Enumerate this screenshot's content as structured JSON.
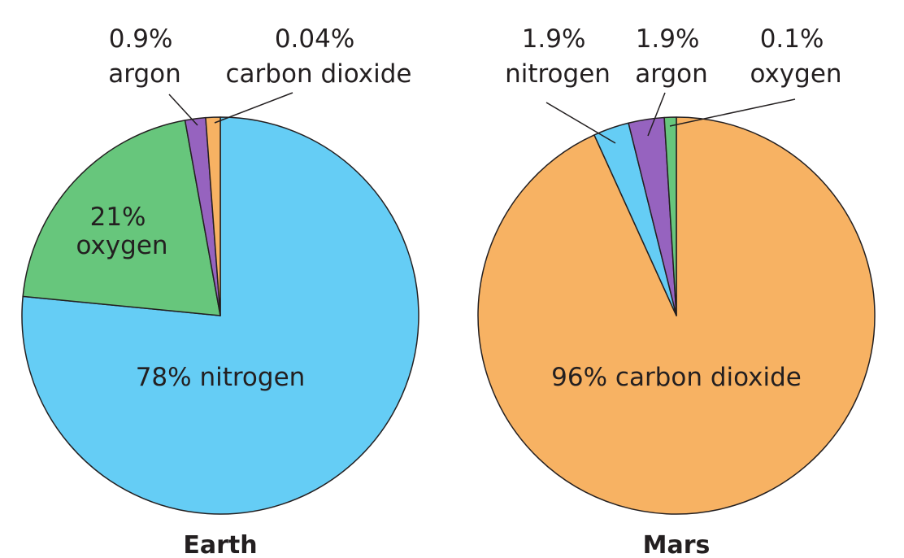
{
  "chart_data": [
    {
      "type": "pie",
      "title": "Earth",
      "start_angle_deg": 0,
      "direction": "clockwise",
      "slices": [
        {
          "label": "nitrogen",
          "value": 78,
          "display": "78% nitrogen",
          "color": "#65cdf5"
        },
        {
          "label": "oxygen",
          "value": 21,
          "display_lines": [
            "21%",
            "oxygen"
          ],
          "color": "#67c67c"
        },
        {
          "label": "argon",
          "value": 0.9,
          "display_lines": [
            "0.9%",
            "argon"
          ],
          "color": "#9663bf",
          "drawn_value": 1.7
        },
        {
          "label": "carbon dioxide",
          "value": 0.04,
          "display_lines": [
            "0.04%",
            "carbon dioxide"
          ],
          "color": "#f7b263",
          "drawn_value": 1.2
        }
      ]
    },
    {
      "type": "pie",
      "title": "Mars",
      "start_angle_deg": 0,
      "direction": "clockwise",
      "slices": [
        {
          "label": "carbon dioxide",
          "value": 96,
          "display": "96% carbon dioxide",
          "color": "#f7b263"
        },
        {
          "label": "nitrogen",
          "value": 1.9,
          "display_lines": [
            "1.9%",
            "nitrogen"
          ],
          "color": "#65cdf5",
          "drawn_value": 3.0
        },
        {
          "label": "argon",
          "value": 1.9,
          "display_lines": [
            "1.9%",
            "argon"
          ],
          "color": "#9663bf",
          "drawn_value": 3.0
        },
        {
          "label": "oxygen",
          "value": 0.1,
          "display_lines": [
            "0.1%",
            "oxygen"
          ],
          "color": "#67c67c",
          "drawn_value": 1.0
        }
      ]
    }
  ]
}
